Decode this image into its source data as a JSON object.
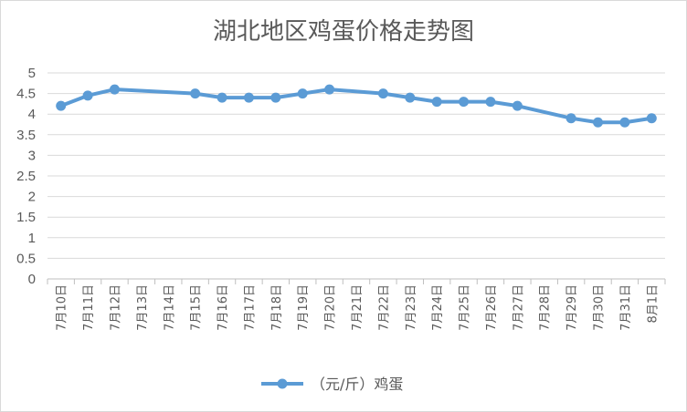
{
  "chart_data": {
    "type": "line",
    "title": "湖北地区鸡蛋价格走势图",
    "xlabel": "",
    "ylabel": "",
    "ylim": [
      0,
      5
    ],
    "yticks": [
      "0",
      "0.5",
      "1",
      "1.5",
      "2",
      "2.5",
      "3",
      "3.5",
      "4",
      "4.5",
      "5"
    ],
    "categories": [
      "7月10日",
      "7月11日",
      "7月12日",
      "7月13日",
      "7月14日",
      "7月15日",
      "7月16日",
      "7月17日",
      "7月18日",
      "7月19日",
      "7月20日",
      "7月21日",
      "7月22日",
      "7月23日",
      "7月24日",
      "7月25日",
      "7月26日",
      "7月27日",
      "7月28日",
      "7月29日",
      "7月30日",
      "7月31日",
      "8月1日"
    ],
    "series": [
      {
        "name": "（元/斤）鸡蛋",
        "color": "#5b9bd5",
        "values": [
          4.2,
          4.45,
          4.6,
          null,
          null,
          4.5,
          4.4,
          4.4,
          4.4,
          4.5,
          4.6,
          null,
          4.5,
          4.4,
          4.3,
          4.3,
          4.3,
          4.2,
          null,
          3.9,
          3.8,
          3.8,
          3.9
        ]
      }
    ],
    "grid": true,
    "legend_position": "bottom"
  }
}
